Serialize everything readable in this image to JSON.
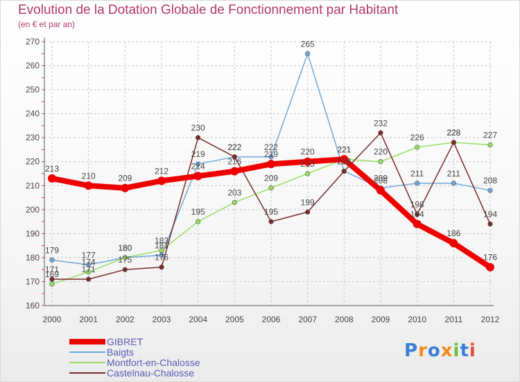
{
  "chart_data": {
    "type": "line",
    "title": "Evolution de la Dotation Globale de Fonctionnement par Habitant",
    "subtitle": "(en € et par an)",
    "xlabel": "",
    "ylabel": "",
    "ylim": [
      160,
      270
    ],
    "yticks": [
      160,
      170,
      180,
      190,
      200,
      210,
      220,
      230,
      240,
      250,
      260,
      270
    ],
    "categories": [
      "2000",
      "2001",
      "2002",
      "2003",
      "2004",
      "2005",
      "2006",
      "2007",
      "2008",
      "2009",
      "2010",
      "2011",
      "2012"
    ],
    "grid": true,
    "legend_position": "bottom-left",
    "series": [
      {
        "name": "GIBRET",
        "color": "#ee0000",
        "values": [
          213,
          210,
          209,
          212,
          214,
          216,
          219,
          220,
          221,
          208,
          194,
          186,
          176
        ]
      },
      {
        "name": "Baigts",
        "color": "#6fa8d8",
        "values": [
          179,
          177,
          180,
          181,
          219,
          222,
          222,
          265,
          216,
          209,
          211,
          211,
          208
        ]
      },
      {
        "name": "Montfort-en-Chalosse",
        "color": "#99dd66",
        "values": [
          169,
          174,
          180,
          183,
          195,
          203,
          209,
          215,
          221,
          220,
          226,
          228,
          227
        ]
      },
      {
        "name": "Castelnau-Chalosse",
        "color": "#7a2a2a",
        "values": [
          171,
          171,
          175,
          176,
          230,
          222,
          195,
          199,
          216,
          232,
          198,
          228,
          194
        ]
      }
    ]
  },
  "logo": {
    "text": "Proxiti",
    "letters": [
      "P",
      "r",
      "o",
      "x",
      "i",
      "t",
      "i"
    ],
    "colors": [
      "#3b7fd4",
      "#f08a1e",
      "#3b7fd4",
      "#f08a1e",
      "#6cbf3c",
      "#3b7fd4",
      "#e84a3c"
    ]
  }
}
